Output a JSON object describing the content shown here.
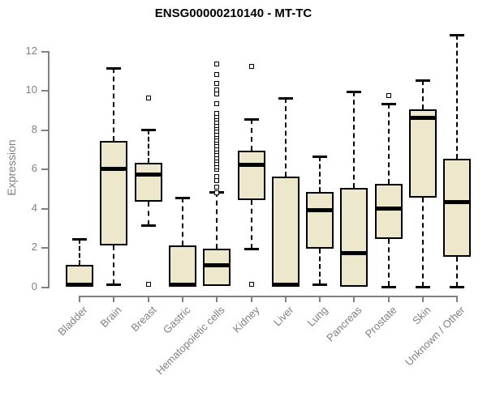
{
  "title": "ENSG00000210140 - MT-TC",
  "colors": {
    "background": "#FFFFFF",
    "box_fill": "#EDE7CC",
    "box_border": "#000000",
    "median": "#000000",
    "axis": "#808080",
    "axis_text": "#808080",
    "title_text": "#000000"
  },
  "chart_data": {
    "type": "boxplot",
    "title": "ENSG00000210140 - MT-TC",
    "xlabel": "",
    "ylabel": "Expression",
    "ylim": [
      0,
      13
    ],
    "yticks": [
      0,
      2,
      4,
      6,
      8,
      10,
      12
    ],
    "grid": false,
    "legend": null,
    "categories": [
      "Bladder",
      "Brain",
      "Breast",
      "Gastric",
      "Hematopoietic cells",
      "Kidney",
      "Liver",
      "Lung",
      "Pancreas",
      "Prostate",
      "Skin",
      "Unknown / Other"
    ],
    "series": [
      {
        "name": "Bladder",
        "whisker_low": 0,
        "q1": 0,
        "median": 0.1,
        "q3": 1.1,
        "whisker_high": 2.4,
        "outliers": []
      },
      {
        "name": "Brain",
        "whisker_low": 0.1,
        "q1": 2.1,
        "median": 6.0,
        "q3": 7.4,
        "whisker_high": 11.1,
        "outliers": []
      },
      {
        "name": "Breast",
        "whisker_low": 3.1,
        "q1": 4.3,
        "median": 5.7,
        "q3": 6.3,
        "whisker_high": 8.0,
        "outliers": [
          9.6,
          0.1
        ]
      },
      {
        "name": "Gastric",
        "whisker_low": 0,
        "q1": 0,
        "median": 0.1,
        "q3": 2.1,
        "whisker_high": 4.5,
        "outliers": []
      },
      {
        "name": "Hematopoietic cells",
        "whisker_low": 0,
        "q1": 0,
        "median": 1.1,
        "q3": 1.9,
        "whisker_high": 4.8,
        "outliers": [
          4.75,
          5.05,
          5.4,
          5.6,
          5.95,
          6.1,
          6.25,
          6.4,
          6.55,
          6.7,
          6.85,
          7.0,
          7.15,
          7.3,
          7.45,
          7.6,
          7.75,
          7.9,
          8.05,
          8.2,
          8.35,
          8.5,
          8.65,
          8.8,
          9.3,
          9.8,
          10.0,
          10.35,
          10.8,
          11.3
        ]
      },
      {
        "name": "Kidney",
        "whisker_low": 1.9,
        "q1": 4.4,
        "median": 6.2,
        "q3": 6.9,
        "whisker_high": 8.5,
        "outliers": [
          11.2,
          0.1
        ]
      },
      {
        "name": "Liver",
        "whisker_low": 0,
        "q1": 0,
        "median": 0.1,
        "q3": 5.6,
        "whisker_high": 9.6,
        "outliers": []
      },
      {
        "name": "Lung",
        "whisker_low": 0.1,
        "q1": 1.9,
        "median": 3.9,
        "q3": 4.8,
        "whisker_high": 6.6,
        "outliers": []
      },
      {
        "name": "Pancreas",
        "whisker_low": 0,
        "q1": 0,
        "median": 1.7,
        "q3": 5.0,
        "whisker_high": 9.9,
        "outliers": []
      },
      {
        "name": "Prostate",
        "whisker_low": 0,
        "q1": 2.4,
        "median": 4.0,
        "q3": 5.2,
        "whisker_high": 9.3,
        "outliers": [
          9.7
        ]
      },
      {
        "name": "Skin",
        "whisker_low": 0,
        "q1": 4.5,
        "median": 8.6,
        "q3": 9.0,
        "whisker_high": 10.5,
        "outliers": []
      },
      {
        "name": "Unknown / Other",
        "whisker_low": 0,
        "q1": 1.5,
        "median": 4.3,
        "q3": 6.5,
        "whisker_high": 12.8,
        "outliers": []
      }
    ]
  }
}
